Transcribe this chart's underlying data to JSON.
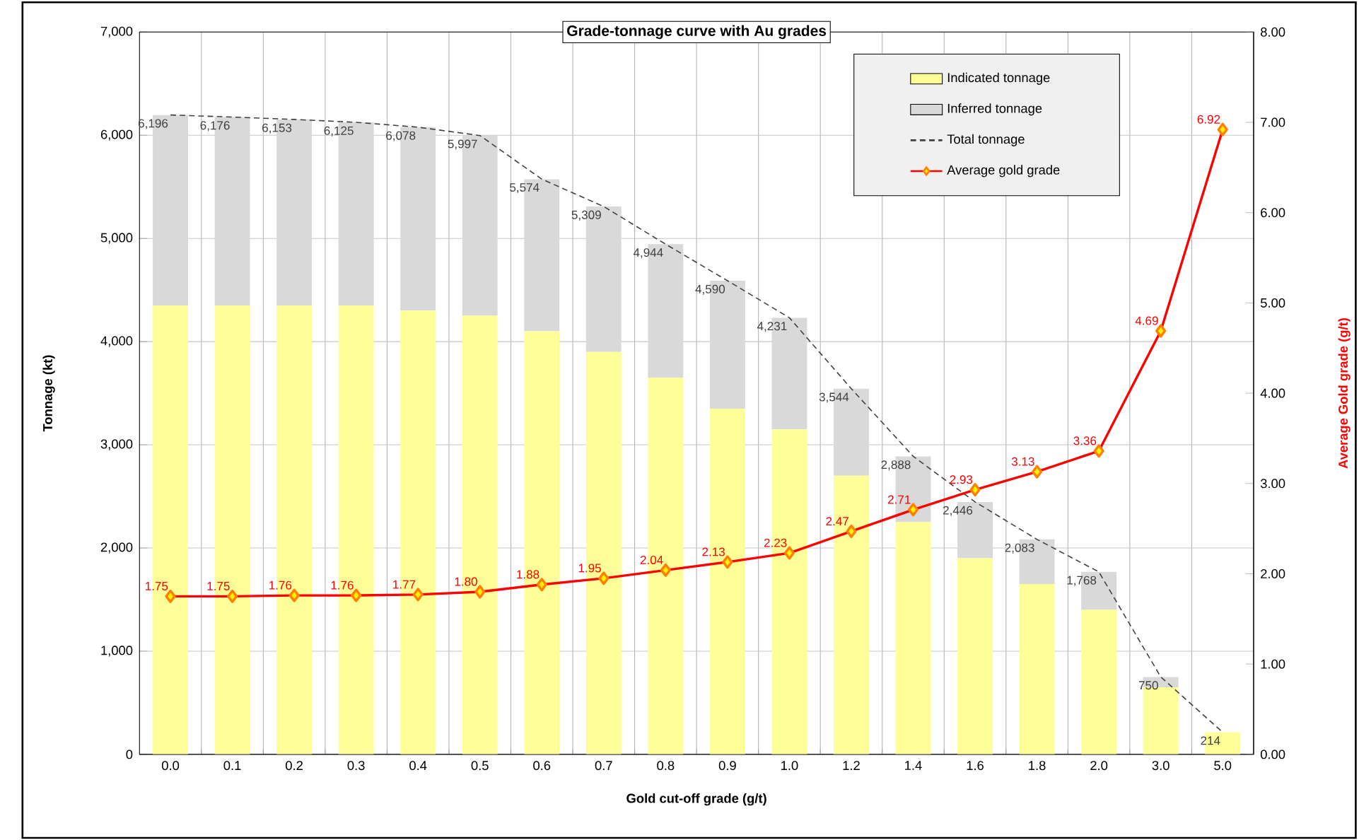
{
  "chart_data": {
    "type": "bar",
    "stacked": true,
    "title": "Grade-tonnage curve with Au grades",
    "xlabel": "Gold cut-off grade (g/t)",
    "ylabel": "Tonnage (kt)",
    "y2label": "Average Gold grade (g/t)",
    "categories": [
      "0.0",
      "0.1",
      "0.2",
      "0.3",
      "0.4",
      "0.5",
      "0.6",
      "0.7",
      "0.8",
      "0.9",
      "1.0",
      "1.2",
      "1.4",
      "1.6",
      "1.8",
      "2.0",
      "3.0",
      "5.0"
    ],
    "series": [
      {
        "name": "Indicated tonnage",
        "color": "#ffff99",
        "values": [
          4350,
          4350,
          4350,
          4350,
          4300,
          4250,
          4100,
          3900,
          3650,
          3350,
          3150,
          2700,
          2250,
          1900,
          1650,
          1400,
          650,
          214
        ]
      },
      {
        "name": "Inferred tonnage",
        "color": "#d9d9d9",
        "values": [
          1846,
          1826,
          1803,
          1775,
          1778,
          1747,
          1474,
          1409,
          1294,
          1240,
          1081,
          844,
          638,
          546,
          433,
          368,
          100,
          0
        ]
      },
      {
        "name": "Total tonnage",
        "type": "line",
        "color": "#404040",
        "line_style": "dashed",
        "marker": "none",
        "values": [
          6196,
          6176,
          6153,
          6125,
          6078,
          5997,
          5574,
          5309,
          4944,
          4590,
          4231,
          3544,
          2888,
          2446,
          2083,
          1768,
          750,
          214
        ],
        "value_labels": [
          "6,196",
          "6,176",
          "6,153",
          "6,125",
          "6,078",
          "5,997",
          "5,574",
          "5,309",
          "4,944",
          "4,590",
          "4,231",
          "3,544",
          "2,888",
          "2,446",
          "2,083",
          "1,768",
          "750",
          "214"
        ]
      },
      {
        "name": "Average gold grade",
        "type": "line",
        "axis": "y2",
        "color": "#ff0000",
        "line_style": "solid",
        "marker": "diamond",
        "values": [
          1.75,
          1.75,
          1.76,
          1.76,
          1.77,
          1.8,
          1.88,
          1.95,
          2.04,
          2.13,
          2.23,
          2.47,
          2.71,
          2.93,
          3.13,
          3.36,
          4.69,
          6.92
        ],
        "value_labels": [
          "1.75",
          "1.75",
          "1.76",
          "1.76",
          "1.77",
          "1.80",
          "1.88",
          "1.95",
          "2.04",
          "2.13",
          "2.23",
          "2.47",
          "2.71",
          "2.93",
          "3.13",
          "3.36",
          "4.69",
          "6.92"
        ]
      }
    ],
    "ylim": [
      0,
      7000
    ],
    "yticks": [
      0,
      {
        "value": 1000,
        "label": "1,000"
      },
      {
        "value": 2000,
        "label": "2,000"
      },
      {
        "value": 3000,
        "label": "3,000"
      },
      {
        "value": 4000,
        "label": "4,000"
      },
      {
        "value": 5000,
        "label": "5,000"
      },
      {
        "value": 6000,
        "label": "6,000"
      },
      {
        "value": 7000,
        "label": "7,000"
      }
    ],
    "y2lim": [
      0,
      8
    ],
    "y2ticks": [
      {
        "value": 0,
        "label": "0.00"
      },
      {
        "value": 1,
        "label": "1.00"
      },
      {
        "value": 2,
        "label": "2.00"
      },
      {
        "value": 3,
        "label": "3.00"
      },
      {
        "value": 4,
        "label": "4.00"
      },
      {
        "value": 5,
        "label": "5.00"
      },
      {
        "value": 6,
        "label": "6.00"
      },
      {
        "value": 7,
        "label": "7.00"
      },
      {
        "value": 8,
        "label": "8.00"
      }
    ],
    "grid": true,
    "legend": "top right"
  }
}
